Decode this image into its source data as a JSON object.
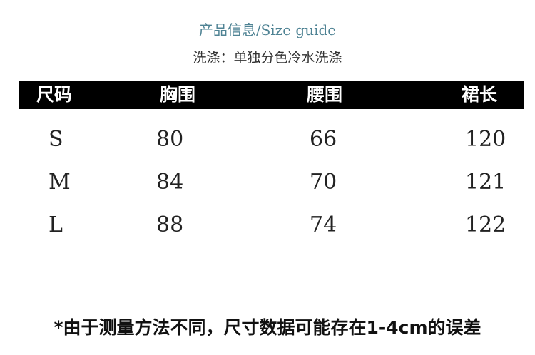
{
  "header": {
    "title": "产品信息/Size guide",
    "wash": "洗涤：单独分色冷水洗涤"
  },
  "table": {
    "columns": [
      "尺码",
      "胸围",
      "腰围",
      "裙长"
    ],
    "rows": [
      [
        "S",
        "80",
        "66",
        "120"
      ],
      [
        "M",
        "84",
        "70",
        "121"
      ],
      [
        "L",
        "88",
        "74",
        "122"
      ]
    ]
  },
  "note": "*由于测量方法不同，尺寸数据可能存在1-4cm的误差"
}
